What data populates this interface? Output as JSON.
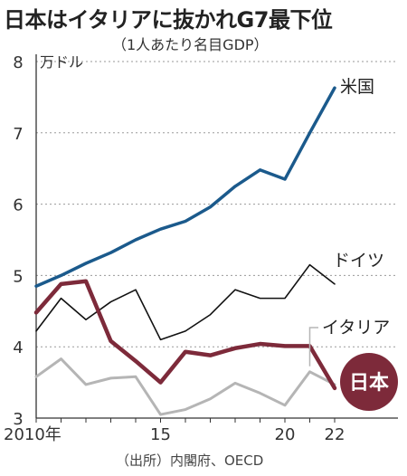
{
  "title": "日本はイタリアに抜かれG7最下位",
  "subtitle": "（1人あたり名目GDP）",
  "source": "（出所）内閣府、OECD",
  "chart_data": {
    "type": "line",
    "title": "日本はイタリアに抜かれG7最下位",
    "subtitle": "（1人あたり名目GDP）",
    "y_unit": "万ドル",
    "ylim": [
      3,
      8
    ],
    "y_ticks": [
      "3",
      "4",
      "5",
      "6",
      "7",
      "8"
    ],
    "xlim": [
      2010,
      2022
    ],
    "x_ticks": [
      {
        "value": 2010,
        "label": "2010年"
      },
      {
        "value": 2015,
        "label": "15"
      },
      {
        "value": 2020,
        "label": "20"
      },
      {
        "value": 2022,
        "label": "22"
      }
    ],
    "grid": true,
    "x": [
      2010,
      2011,
      2012,
      2013,
      2014,
      2015,
      2016,
      2017,
      2018,
      2019,
      2020,
      2021,
      2022
    ],
    "series": [
      {
        "name": "米国",
        "color": "#1b5a8c",
        "width": 3.5,
        "values": [
          4.85,
          5.0,
          5.17,
          5.32,
          5.5,
          5.65,
          5.76,
          5.96,
          6.25,
          6.48,
          6.35,
          7.0,
          7.63
        ]
      },
      {
        "name": "ドイツ",
        "color": "#111111",
        "width": 1.6,
        "values": [
          4.22,
          4.68,
          4.38,
          4.63,
          4.8,
          4.1,
          4.22,
          4.45,
          4.8,
          4.68,
          4.68,
          5.15,
          4.88
        ]
      },
      {
        "name": "イタリア",
        "color": "#b5b5b5",
        "width": 3,
        "values": [
          3.58,
          3.83,
          3.47,
          3.56,
          3.58,
          3.05,
          3.12,
          3.27,
          3.49,
          3.35,
          3.18,
          3.65,
          3.47
        ]
      },
      {
        "name": "日本",
        "color": "#7d2a3a",
        "width": 4.5,
        "values": [
          4.48,
          4.88,
          4.92,
          4.08,
          3.8,
          3.5,
          3.93,
          3.88,
          3.98,
          4.04,
          4.01,
          4.01,
          3.42
        ]
      }
    ]
  }
}
